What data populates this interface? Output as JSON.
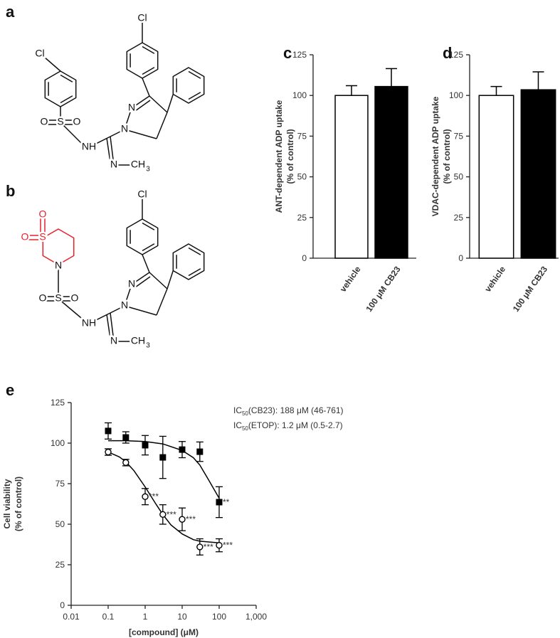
{
  "structures": [
    {
      "label": "a",
      "atoms": {
        "cl_ring": "Cl",
        "o1": "O",
        "s": "S",
        "o2": "O",
        "nh": "NH",
        "n1": "N",
        "n2": "N",
        "n3": "N",
        "ch": "CH",
        "sub": "3",
        "cl_top": "Cl"
      }
    },
    {
      "label": "b",
      "atoms": {
        "o_ring_1": "O",
        "o_ring_2": "O",
        "s_ring": "S",
        "n_ring": "N",
        "o1": "O",
        "s": "S",
        "o2": "O",
        "nh": "NH",
        "n1": "N",
        "n2": "N",
        "n3": "N",
        "ch": "CH",
        "sub": "3",
        "cl_top": "Cl"
      }
    }
  ],
  "chart_data": [
    {
      "type": "bar",
      "panel": "c",
      "ylabel": [
        "ANT-dependent ADP uptake",
        "(% of control)"
      ],
      "categories": [
        "vehicle",
        "100 μM CB23"
      ],
      "values": [
        100,
        105.5
      ],
      "errors": [
        6,
        11
      ],
      "colors": [
        "#ffffff",
        "#000000"
      ],
      "ylim": [
        0,
        125
      ],
      "yticks": [
        0,
        25,
        50,
        75,
        100,
        125
      ]
    },
    {
      "type": "bar",
      "panel": "d",
      "ylabel": [
        "VDAC-dependent ADP uptake",
        "(% of control)"
      ],
      "categories": [
        "vehicle",
        "100 μM CB23"
      ],
      "values": [
        100,
        103.5
      ],
      "errors": [
        5.5,
        11
      ],
      "colors": [
        "#ffffff",
        "#000000"
      ],
      "ylim": [
        0,
        125
      ],
      "yticks": [
        0,
        25,
        50,
        75,
        100,
        125
      ]
    },
    {
      "type": "line",
      "panel": "e",
      "xlabel": "[compound] (μM)",
      "ylabel": [
        "Cell viability",
        "(% of control)"
      ],
      "xscale": "log",
      "xlim": [
        0.01,
        1000
      ],
      "xticks": [
        0.01,
        0.1,
        1,
        10,
        100,
        {
          "value": 1000,
          "label": "1,000"
        }
      ],
      "ylim": [
        0,
        125
      ],
      "yticks": [
        0,
        25,
        50,
        75,
        100,
        125
      ],
      "annotations": [
        [
          "IC",
          "50",
          "(CB23): 188 μM (46-761)"
        ],
        [
          "IC",
          "50",
          "(ETOP): 1.2 μM (0.5-2.7)"
        ]
      ],
      "x": [
        0.1,
        0.3,
        1,
        3,
        10,
        30,
        100
      ],
      "series": [
        {
          "marker": "square",
          "color": "#000000",
          "values": [
            107.5,
            103.5,
            98.7,
            91.2,
            96,
            94.7,
            63.6
          ],
          "errors": [
            5,
            3.5,
            6,
            13,
            5,
            6,
            9.5
          ],
          "sig_labels": [
            null,
            null,
            null,
            null,
            null,
            null,
            "**"
          ]
        },
        {
          "marker": "circle",
          "color": "#000000",
          "values": [
            94.5,
            88,
            67,
            56,
            53,
            36,
            37
          ],
          "errors": [
            2,
            2,
            5,
            6,
            7,
            5,
            4
          ],
          "sig_labels": [
            null,
            null,
            "***",
            "***",
            "***",
            "***",
            "***"
          ]
        }
      ],
      "fits": [
        {
          "x": [
            0.1,
            0.3,
            1,
            3,
            10,
            20,
            30,
            50,
            100
          ],
          "values": [
            101.5,
            101.5,
            101,
            99.5,
            95.5,
            91,
            86.5,
            78,
            66
          ]
        },
        {
          "x": [
            0.1,
            0.2,
            0.3,
            0.5,
            1,
            2,
            3,
            5,
            10,
            20,
            30,
            100
          ],
          "values": [
            94.5,
            91.5,
            88.5,
            83,
            73,
            62,
            56,
            49.5,
            44,
            40.5,
            39.5,
            38.5
          ]
        }
      ]
    }
  ]
}
